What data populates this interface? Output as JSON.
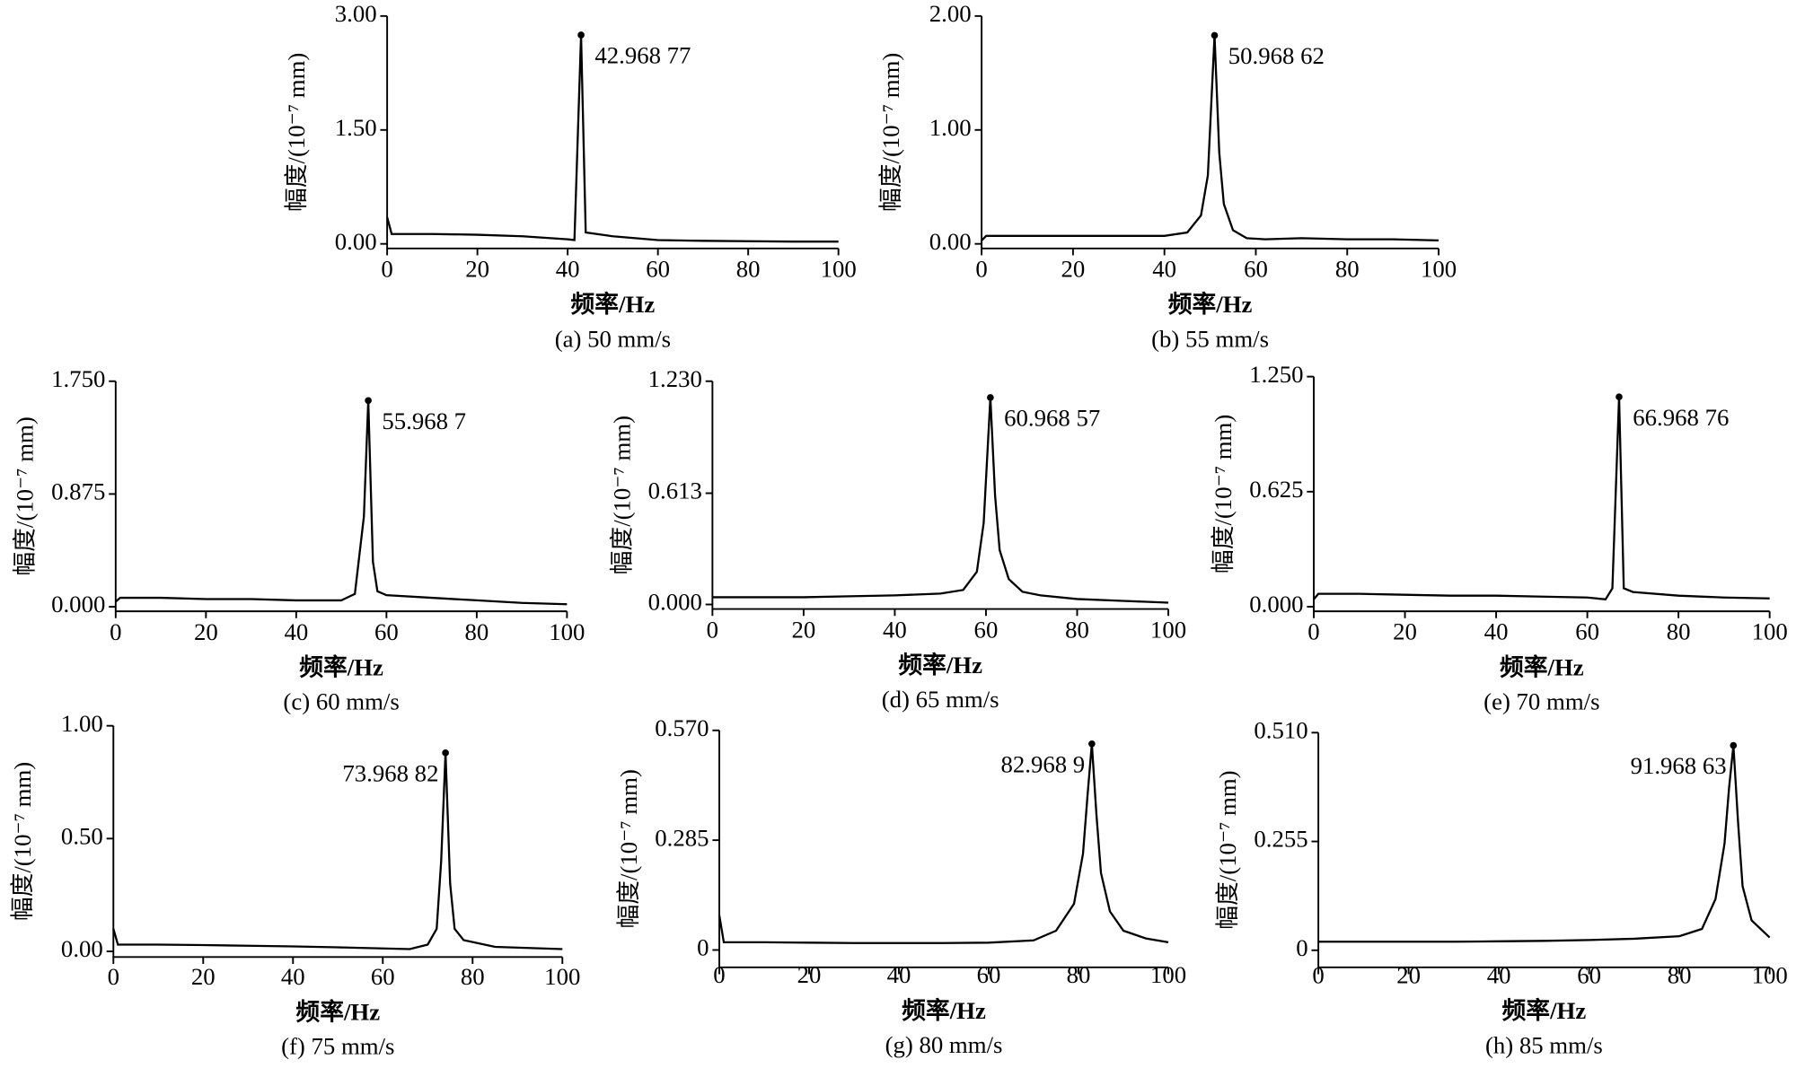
{
  "chart_data": [
    {
      "type": "line",
      "caption": "(a) 50 mm/s",
      "x_label": "频率/Hz",
      "y_label": "幅度/(10⁻⁷ mm)",
      "xlim": [
        0,
        100
      ],
      "xticks": [
        0,
        20,
        40,
        60,
        80,
        100
      ],
      "ylim": [
        -0.06,
        3
      ],
      "yticks": [
        {
          "value": 0,
          "label": "0.00"
        },
        {
          "value": 1.5,
          "label": "1.50"
        },
        {
          "value": 3,
          "label": "3.00"
        }
      ],
      "x": [
        0,
        1,
        10,
        20,
        30,
        40,
        41.5,
        42.96877,
        44,
        50,
        60,
        70,
        80,
        90,
        100
      ],
      "values": [
        0.35,
        0.13,
        0.13,
        0.12,
        0.1,
        0.06,
        0.05,
        2.75,
        0.15,
        0.1,
        0.05,
        0.04,
        0.035,
        0.03,
        0.03
      ],
      "color": "#000000",
      "annotation": {
        "text": "42.968 77",
        "x": 42.96877,
        "y": 2.75
      }
    },
    {
      "type": "line",
      "caption": "(b) 55 mm/s",
      "x_label": "频率/Hz",
      "y_label": "幅度/(10⁻⁷ mm)",
      "xlim": [
        0,
        100
      ],
      "xticks": [
        0,
        20,
        40,
        60,
        80,
        100
      ],
      "ylim": [
        -0.04,
        2
      ],
      "yticks": [
        {
          "value": 0,
          "label": "0.00"
        },
        {
          "value": 1,
          "label": "1.00"
        },
        {
          "value": 2,
          "label": "2.00"
        }
      ],
      "x": [
        0,
        1,
        10,
        20,
        30,
        40,
        45,
        48,
        49.5,
        50.96862,
        52,
        53,
        55,
        58,
        62,
        70,
        80,
        90,
        100
      ],
      "values": [
        0.03,
        0.07,
        0.07,
        0.07,
        0.07,
        0.07,
        0.1,
        0.25,
        0.6,
        1.83,
        0.8,
        0.35,
        0.12,
        0.05,
        0.04,
        0.05,
        0.04,
        0.04,
        0.03
      ],
      "color": "#000000",
      "annotation": {
        "text": "50.968 62",
        "x": 50.96862,
        "y": 1.83
      }
    },
    {
      "type": "line",
      "caption": "(c) 60 mm/s",
      "x_label": "频率/Hz",
      "y_label": "幅度/(10⁻⁷ mm)",
      "xlim": [
        0,
        100
      ],
      "xticks": [
        0,
        20,
        40,
        60,
        80,
        100
      ],
      "ylim": [
        -0.035,
        1.75
      ],
      "yticks": [
        {
          "value": 0,
          "label": "0.000"
        },
        0.875,
        {
          "value": 1.75,
          "label": "1.750"
        }
      ],
      "x": [
        0,
        1,
        10,
        20,
        30,
        40,
        50,
        53,
        55,
        55.9687,
        57,
        58,
        60,
        70,
        80,
        90,
        100
      ],
      "values": [
        0.04,
        0.07,
        0.07,
        0.06,
        0.06,
        0.05,
        0.05,
        0.1,
        0.7,
        1.6,
        0.35,
        0.12,
        0.09,
        0.07,
        0.05,
        0.03,
        0.02
      ],
      "color": "#000000",
      "annotation": {
        "text": "55.968 7",
        "x": 55.9687,
        "y": 1.6
      }
    },
    {
      "type": "line",
      "caption": "(d) 65 mm/s",
      "x_label": "频率/Hz",
      "y_label": "幅度/(10⁻⁷ mm)",
      "xlim": [
        0,
        100
      ],
      "xticks": [
        0,
        20,
        40,
        60,
        80,
        100
      ],
      "ylim": [
        -0.025,
        1.23
      ],
      "yticks": [
        {
          "value": 0,
          "label": "0.000"
        },
        0.613,
        {
          "value": 1.23,
          "label": "1.230"
        }
      ],
      "x": [
        0,
        10,
        20,
        30,
        40,
        50,
        55,
        58,
        59.5,
        60.96857,
        62,
        63,
        65,
        68,
        72,
        80,
        90,
        100
      ],
      "values": [
        0.04,
        0.04,
        0.04,
        0.045,
        0.05,
        0.06,
        0.08,
        0.18,
        0.45,
        1.14,
        0.6,
        0.3,
        0.14,
        0.07,
        0.05,
        0.03,
        0.02,
        0.01
      ],
      "color": "#000000",
      "annotation": {
        "text": "60.968 57",
        "x": 60.96857,
        "y": 1.14
      }
    },
    {
      "type": "line",
      "caption": "(e) 70 mm/s",
      "x_label": "频率/Hz",
      "y_label": "幅度/(10⁻⁷ mm)",
      "xlim": [
        0,
        100
      ],
      "xticks": [
        0,
        20,
        40,
        60,
        80,
        100
      ],
      "ylim": [
        -0.025,
        1.25
      ],
      "yticks": [
        {
          "value": 0,
          "label": "0.000"
        },
        0.625,
        {
          "value": 1.25,
          "label": "1.250"
        }
      ],
      "x": [
        0,
        1,
        10,
        20,
        30,
        40,
        50,
        60,
        64,
        65.5,
        66.96876,
        68,
        70,
        80,
        90,
        100
      ],
      "values": [
        0.04,
        0.07,
        0.07,
        0.065,
        0.06,
        0.06,
        0.055,
        0.05,
        0.04,
        0.1,
        1.14,
        0.1,
        0.08,
        0.06,
        0.05,
        0.045
      ],
      "color": "#000000",
      "annotation": {
        "text": "66.968 76",
        "x": 66.96876,
        "y": 1.14
      }
    },
    {
      "type": "line",
      "caption": "(f) 75 mm/s",
      "x_label": "频率/Hz",
      "y_label": "幅度/(10⁻⁷ mm)",
      "xlim": [
        0,
        100
      ],
      "xticks": [
        0,
        20,
        40,
        60,
        80,
        100
      ],
      "ylim": [
        -0.025,
        1
      ],
      "yticks": [
        {
          "value": 0,
          "label": "0.00"
        },
        {
          "value": 0.5,
          "label": "0.50"
        },
        {
          "value": 1,
          "label": "1.00"
        }
      ],
      "x": [
        0,
        1,
        10,
        20,
        30,
        40,
        50,
        60,
        66,
        70,
        72,
        73,
        73.96882,
        75,
        76,
        78,
        85,
        100
      ],
      "values": [
        0.1,
        0.03,
        0.03,
        0.028,
        0.025,
        0.022,
        0.018,
        0.013,
        0.01,
        0.03,
        0.1,
        0.4,
        0.88,
        0.3,
        0.1,
        0.05,
        0.02,
        0.01
      ],
      "color": "#000000",
      "annotation": {
        "text": "73.968 82",
        "x": 73.96882,
        "y": 0.88
      }
    },
    {
      "type": "line",
      "caption": "(g) 80 mm/s",
      "x_label": "频率/Hz",
      "y_label": "幅度/(10⁻⁷ mm)",
      "xlim": [
        0,
        100
      ],
      "xticks": [
        0,
        20,
        40,
        60,
        80,
        100
      ],
      "ylim": [
        -0.045,
        0.57
      ],
      "yticks": [
        0,
        0.285,
        {
          "value": 0.57,
          "label": "0.570"
        }
      ],
      "x": [
        0,
        1,
        10,
        20,
        30,
        40,
        50,
        60,
        70,
        75,
        79,
        81,
        82,
        82.9689,
        84,
        85,
        87,
        90,
        95,
        100
      ],
      "values": [
        0.09,
        0.02,
        0.02,
        0.019,
        0.018,
        0.018,
        0.018,
        0.019,
        0.025,
        0.05,
        0.12,
        0.25,
        0.4,
        0.535,
        0.35,
        0.2,
        0.1,
        0.05,
        0.03,
        0.02
      ],
      "color": "#000000",
      "annotation": {
        "text": "82.968 9",
        "x": 82.9689,
        "y": 0.535
      }
    },
    {
      "type": "line",
      "caption": "(h) 85 mm/s",
      "x_label": "频率/Hz",
      "y_label": "幅度/(10⁻⁷ mm)",
      "xlim": [
        0,
        100
      ],
      "xticks": [
        0,
        20,
        40,
        60,
        80,
        100
      ],
      "ylim": [
        -0.04,
        0.51
      ],
      "yticks": [
        0,
        0.255,
        {
          "value": 0.51,
          "label": "0.510"
        }
      ],
      "x": [
        0,
        10,
        20,
        30,
        40,
        50,
        60,
        70,
        80,
        85,
        88,
        90,
        91,
        91.96863,
        93,
        94,
        96,
        100
      ],
      "values": [
        0.02,
        0.02,
        0.02,
        0.02,
        0.021,
        0.022,
        0.024,
        0.027,
        0.033,
        0.05,
        0.12,
        0.25,
        0.38,
        0.48,
        0.3,
        0.15,
        0.07,
        0.03
      ],
      "color": "#000000",
      "annotation": {
        "text": "91.968 63",
        "x": 91.96863,
        "y": 0.48
      }
    }
  ]
}
